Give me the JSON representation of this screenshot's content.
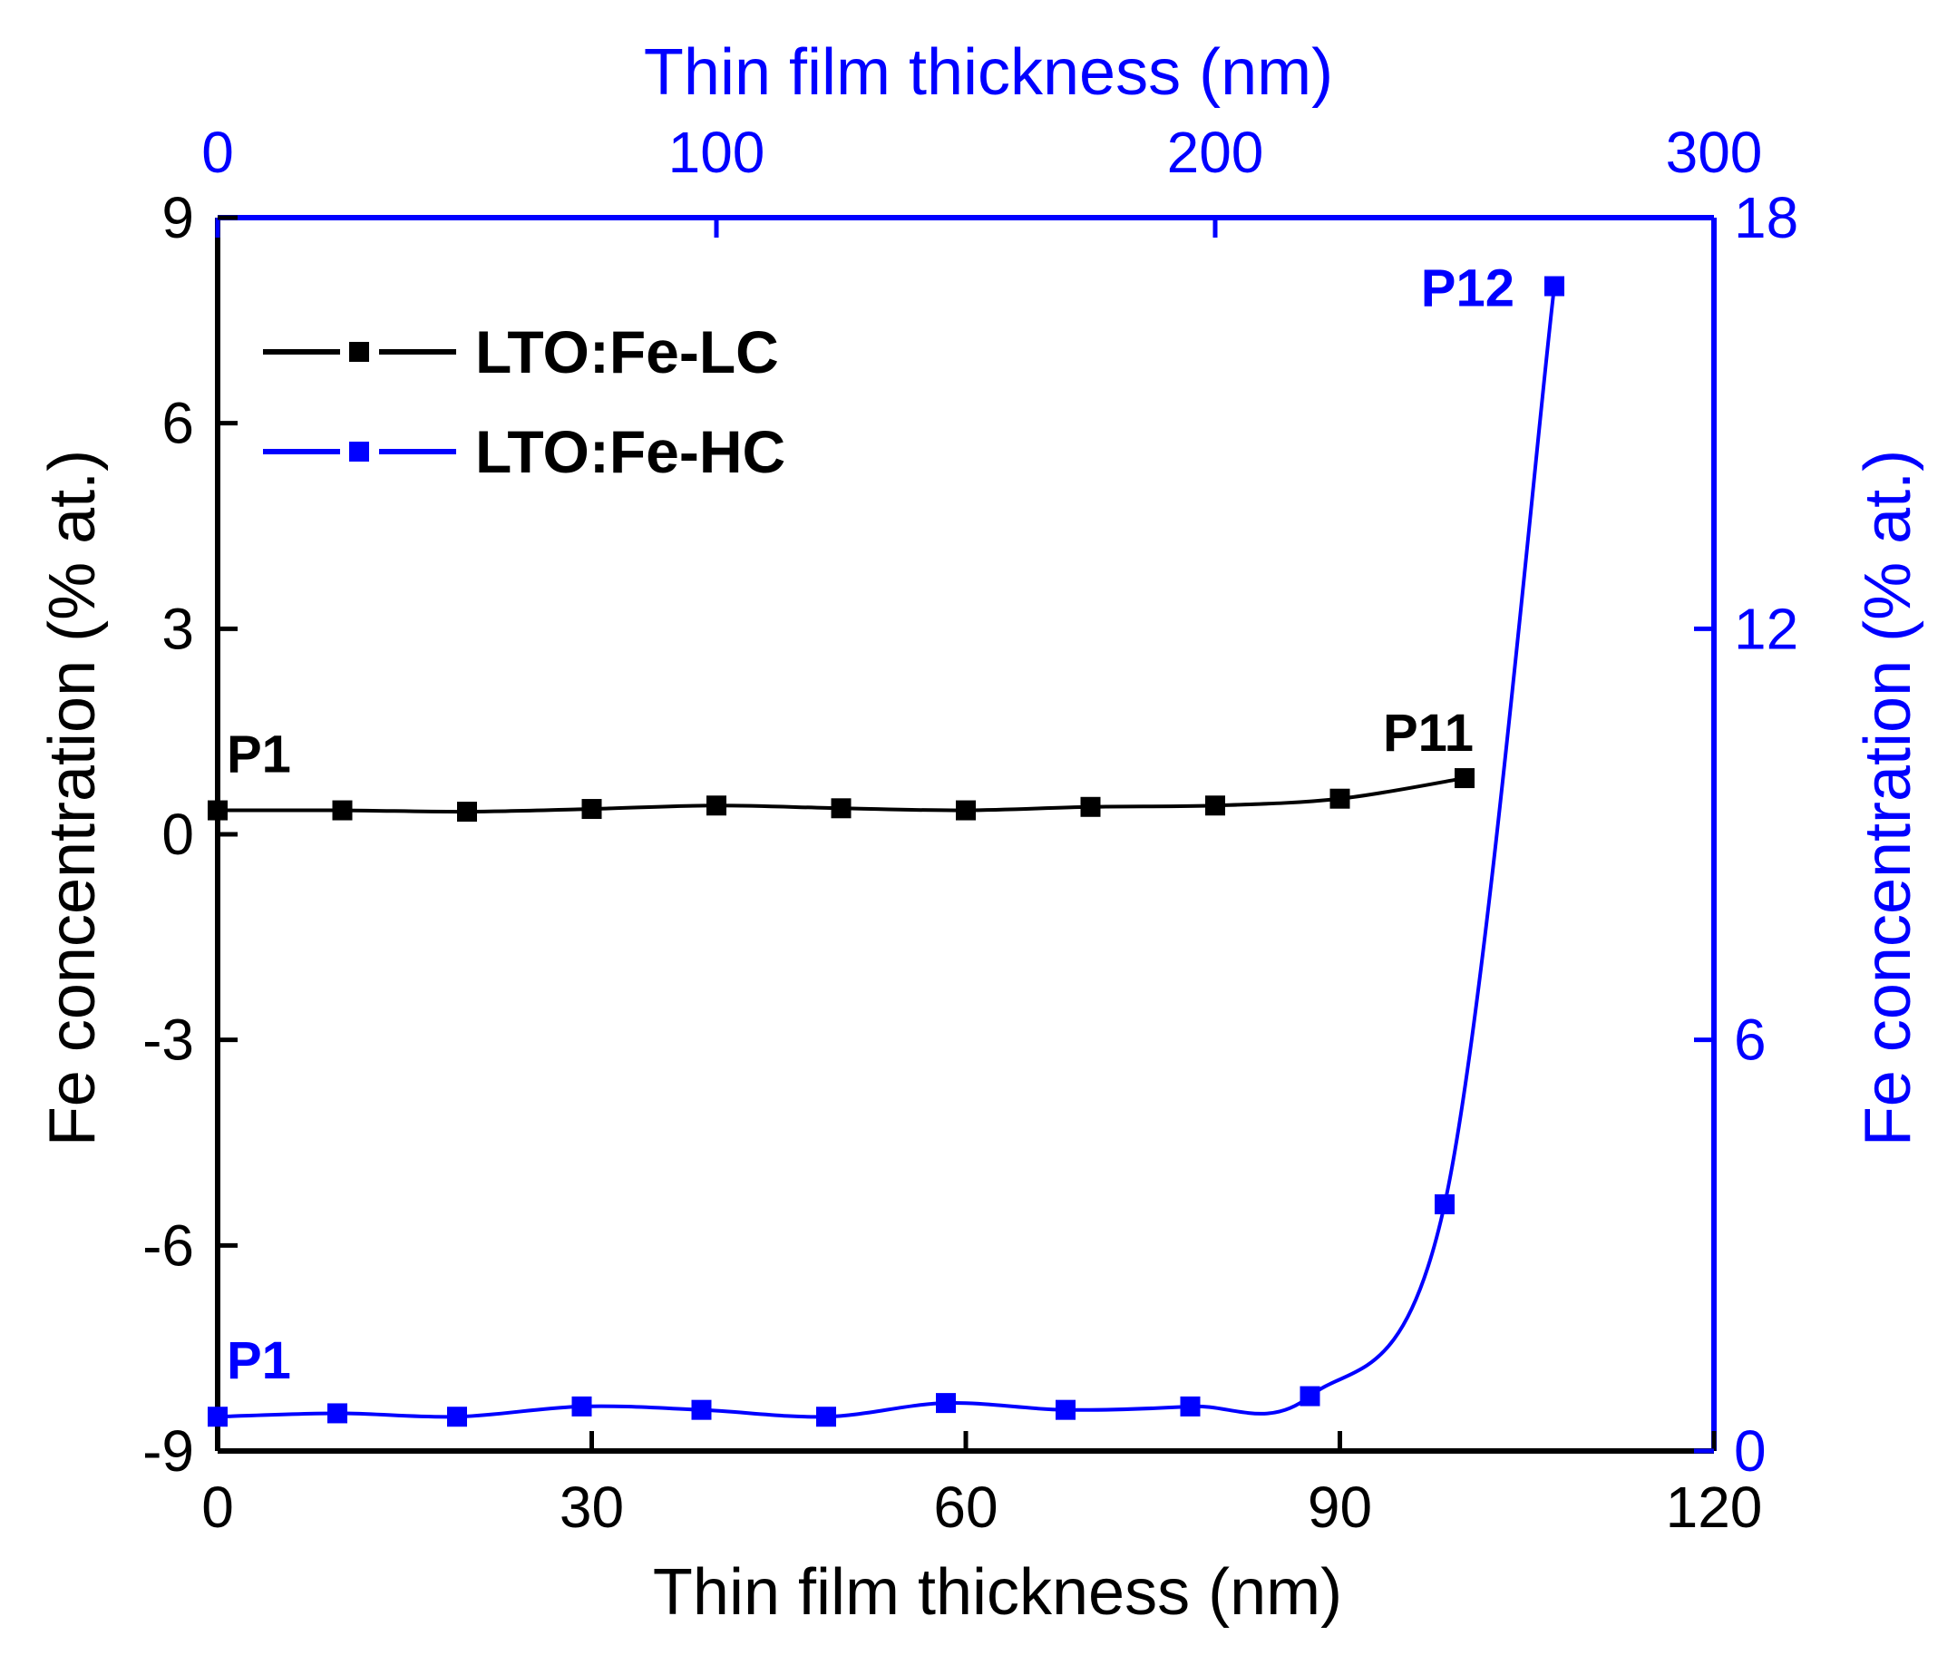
{
  "chart_data": {
    "type": "scatter",
    "bottom_axis": {
      "label": "Thin film thickness (nm)",
      "range": [
        0,
        120
      ],
      "ticks": [
        0,
        30,
        60,
        90,
        120
      ],
      "color": "#000000"
    },
    "top_axis": {
      "label": "Thin film thickness (nm)",
      "range": [
        0,
        300
      ],
      "ticks": [
        0,
        100,
        200,
        300
      ],
      "color": "#0000ff"
    },
    "left_axis": {
      "label": "Fe concentration (% at.)",
      "range": [
        -9,
        9
      ],
      "ticks": [
        -9,
        -6,
        -3,
        0,
        3,
        6,
        9
      ],
      "color": "#000000"
    },
    "right_axis": {
      "label": "Fe concentration (% at.)",
      "range": [
        0,
        18
      ],
      "ticks": [
        0,
        6,
        12,
        18
      ],
      "color": "#0000ff"
    },
    "series": [
      {
        "name": "LTO:Fe-LC",
        "color": "#000000",
        "x_axis": "bottom",
        "y_axis": "left",
        "x": [
          0,
          10,
          20,
          30,
          40,
          50,
          60,
          70,
          80,
          90,
          100
        ],
        "y": [
          0.35,
          0.35,
          0.33,
          0.37,
          0.42,
          0.38,
          0.35,
          0.4,
          0.42,
          0.52,
          0.82
        ],
        "point_labels": [
          {
            "index": 0,
            "text": "P1"
          },
          {
            "index": 10,
            "text": "P11"
          }
        ]
      },
      {
        "name": "LTO:Fe-HC",
        "color": "#0000ff",
        "x_axis": "top",
        "y_axis": "right",
        "x": [
          0,
          24,
          48,
          73,
          97,
          122,
          146,
          170,
          195,
          219,
          246,
          268
        ],
        "y": [
          0.5,
          0.55,
          0.5,
          0.65,
          0.6,
          0.5,
          0.7,
          0.6,
          0.65,
          0.8,
          3.6,
          17.0
        ],
        "point_labels": [
          {
            "index": 0,
            "text": "P1"
          },
          {
            "index": 11,
            "text": "P12"
          }
        ]
      }
    ],
    "legend": {
      "position": "top-left",
      "entries": [
        "LTO:Fe-LC",
        "LTO:Fe-HC"
      ]
    }
  }
}
